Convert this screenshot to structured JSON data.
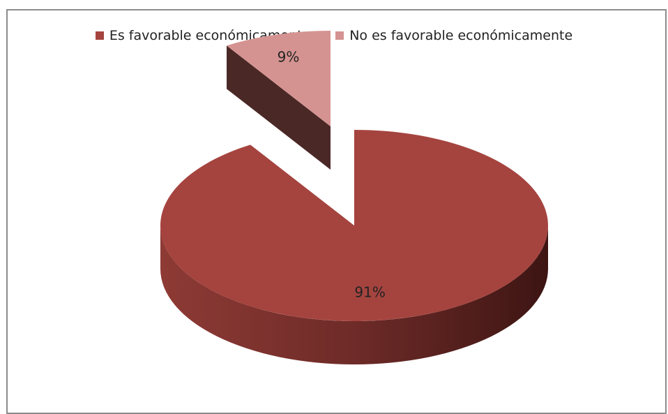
{
  "chart_data": {
    "type": "pie",
    "title": "",
    "categories": [
      "Es favorable económicamente",
      "No es favorable económicamente"
    ],
    "values": [
      91,
      9
    ],
    "labels": [
      "91%",
      "9%"
    ],
    "colors": [
      "#a5443f",
      "#d49391"
    ],
    "legend_position": "top",
    "style": "3d-exploded"
  }
}
